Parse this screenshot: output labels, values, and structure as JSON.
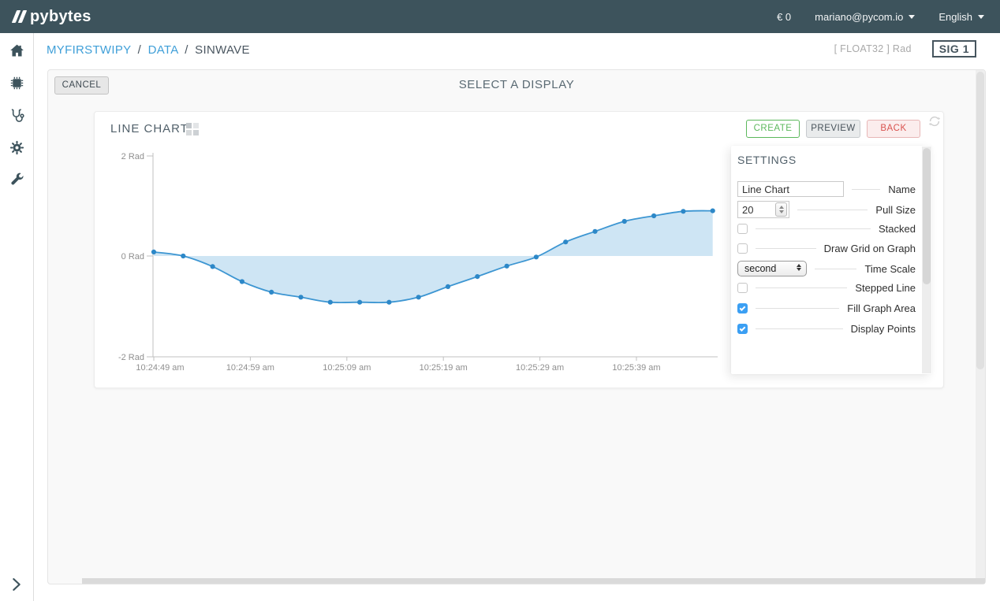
{
  "header": {
    "brand": "pybytes",
    "balance": "€ 0",
    "user": "mariano@pycom.io",
    "language": "English"
  },
  "sidebar": {
    "icons": [
      "home",
      "chip",
      "stethoscope",
      "gear",
      "wrench"
    ],
    "collapse_icon": "chevron-right"
  },
  "breadcrumb": {
    "items": [
      {
        "label": "MYFIRSTWIPY",
        "link": true
      },
      {
        "label": "DATA",
        "link": true
      },
      {
        "label": "SINWAVE",
        "link": false
      }
    ],
    "separator": "/",
    "signal_type": "[ FLOAT32 ] Rad",
    "signal_badge": "SIG 1"
  },
  "toolbar": {
    "cancel_label": "CANCEL",
    "title": "SELECT A DISPLAY"
  },
  "card": {
    "title": "LINE CHART",
    "create_label": "CREATE",
    "preview_label": "PREVIEW",
    "back_label": "BACK"
  },
  "settings": {
    "title": "SETTINGS",
    "fields": [
      {
        "label": "Name",
        "type": "text",
        "value": "Line Chart"
      },
      {
        "label": "Pull Size",
        "type": "number",
        "value": "20"
      },
      {
        "label": "Stacked",
        "type": "checkbox",
        "checked": false
      },
      {
        "label": "Draw Grid on Graph",
        "type": "checkbox",
        "checked": false
      },
      {
        "label": "Time Scale",
        "type": "select",
        "value": "second"
      },
      {
        "label": "Stepped Line",
        "type": "checkbox",
        "checked": false
      },
      {
        "label": "Fill Graph Area",
        "type": "checkbox",
        "checked": true
      },
      {
        "label": "Display Points",
        "type": "checkbox",
        "checked": true
      }
    ]
  },
  "chart_data": {
    "type": "line",
    "title": "Line Chart",
    "unit": "Rad",
    "series": [
      {
        "name": "SINWAVE",
        "values": [
          0.08,
          0.0,
          -0.21,
          -0.51,
          -0.72,
          -0.82,
          -0.92,
          -0.92,
          -0.92,
          -0.82,
          -0.61,
          -0.41,
          -0.2,
          -0.02,
          0.28,
          0.49,
          0.69,
          0.8,
          0.89,
          0.9
        ]
      }
    ],
    "x_start_time": "10:24:49 am",
    "x_sample_interval_seconds": 3,
    "x_tick_labels": [
      "10:24:49 am",
      "10:24:59 am",
      "10:25:09 am",
      "10:25:19 am",
      "10:25:29 am",
      "10:25:39 am"
    ],
    "y_ticks": [
      "2 Rad",
      "0 Rad",
      "-2 Rad"
    ],
    "ylim": [
      -2,
      2
    ],
    "grid": false,
    "fill": true,
    "points": true,
    "stepped": false,
    "line_color": "#3d96d2",
    "point_color": "#2d88c8",
    "fill_color": "rgba(61,150,210,0.25)",
    "axis_color": "#c0c0c0",
    "tick_label_color": "#8f8f8f"
  },
  "colors": {
    "topbar": "#3d535c",
    "link_blue": "#3f9fd8",
    "create_green": "#5cb85c",
    "back_red": "#d9534f",
    "checkbox_blue": "#3b9ff3"
  }
}
